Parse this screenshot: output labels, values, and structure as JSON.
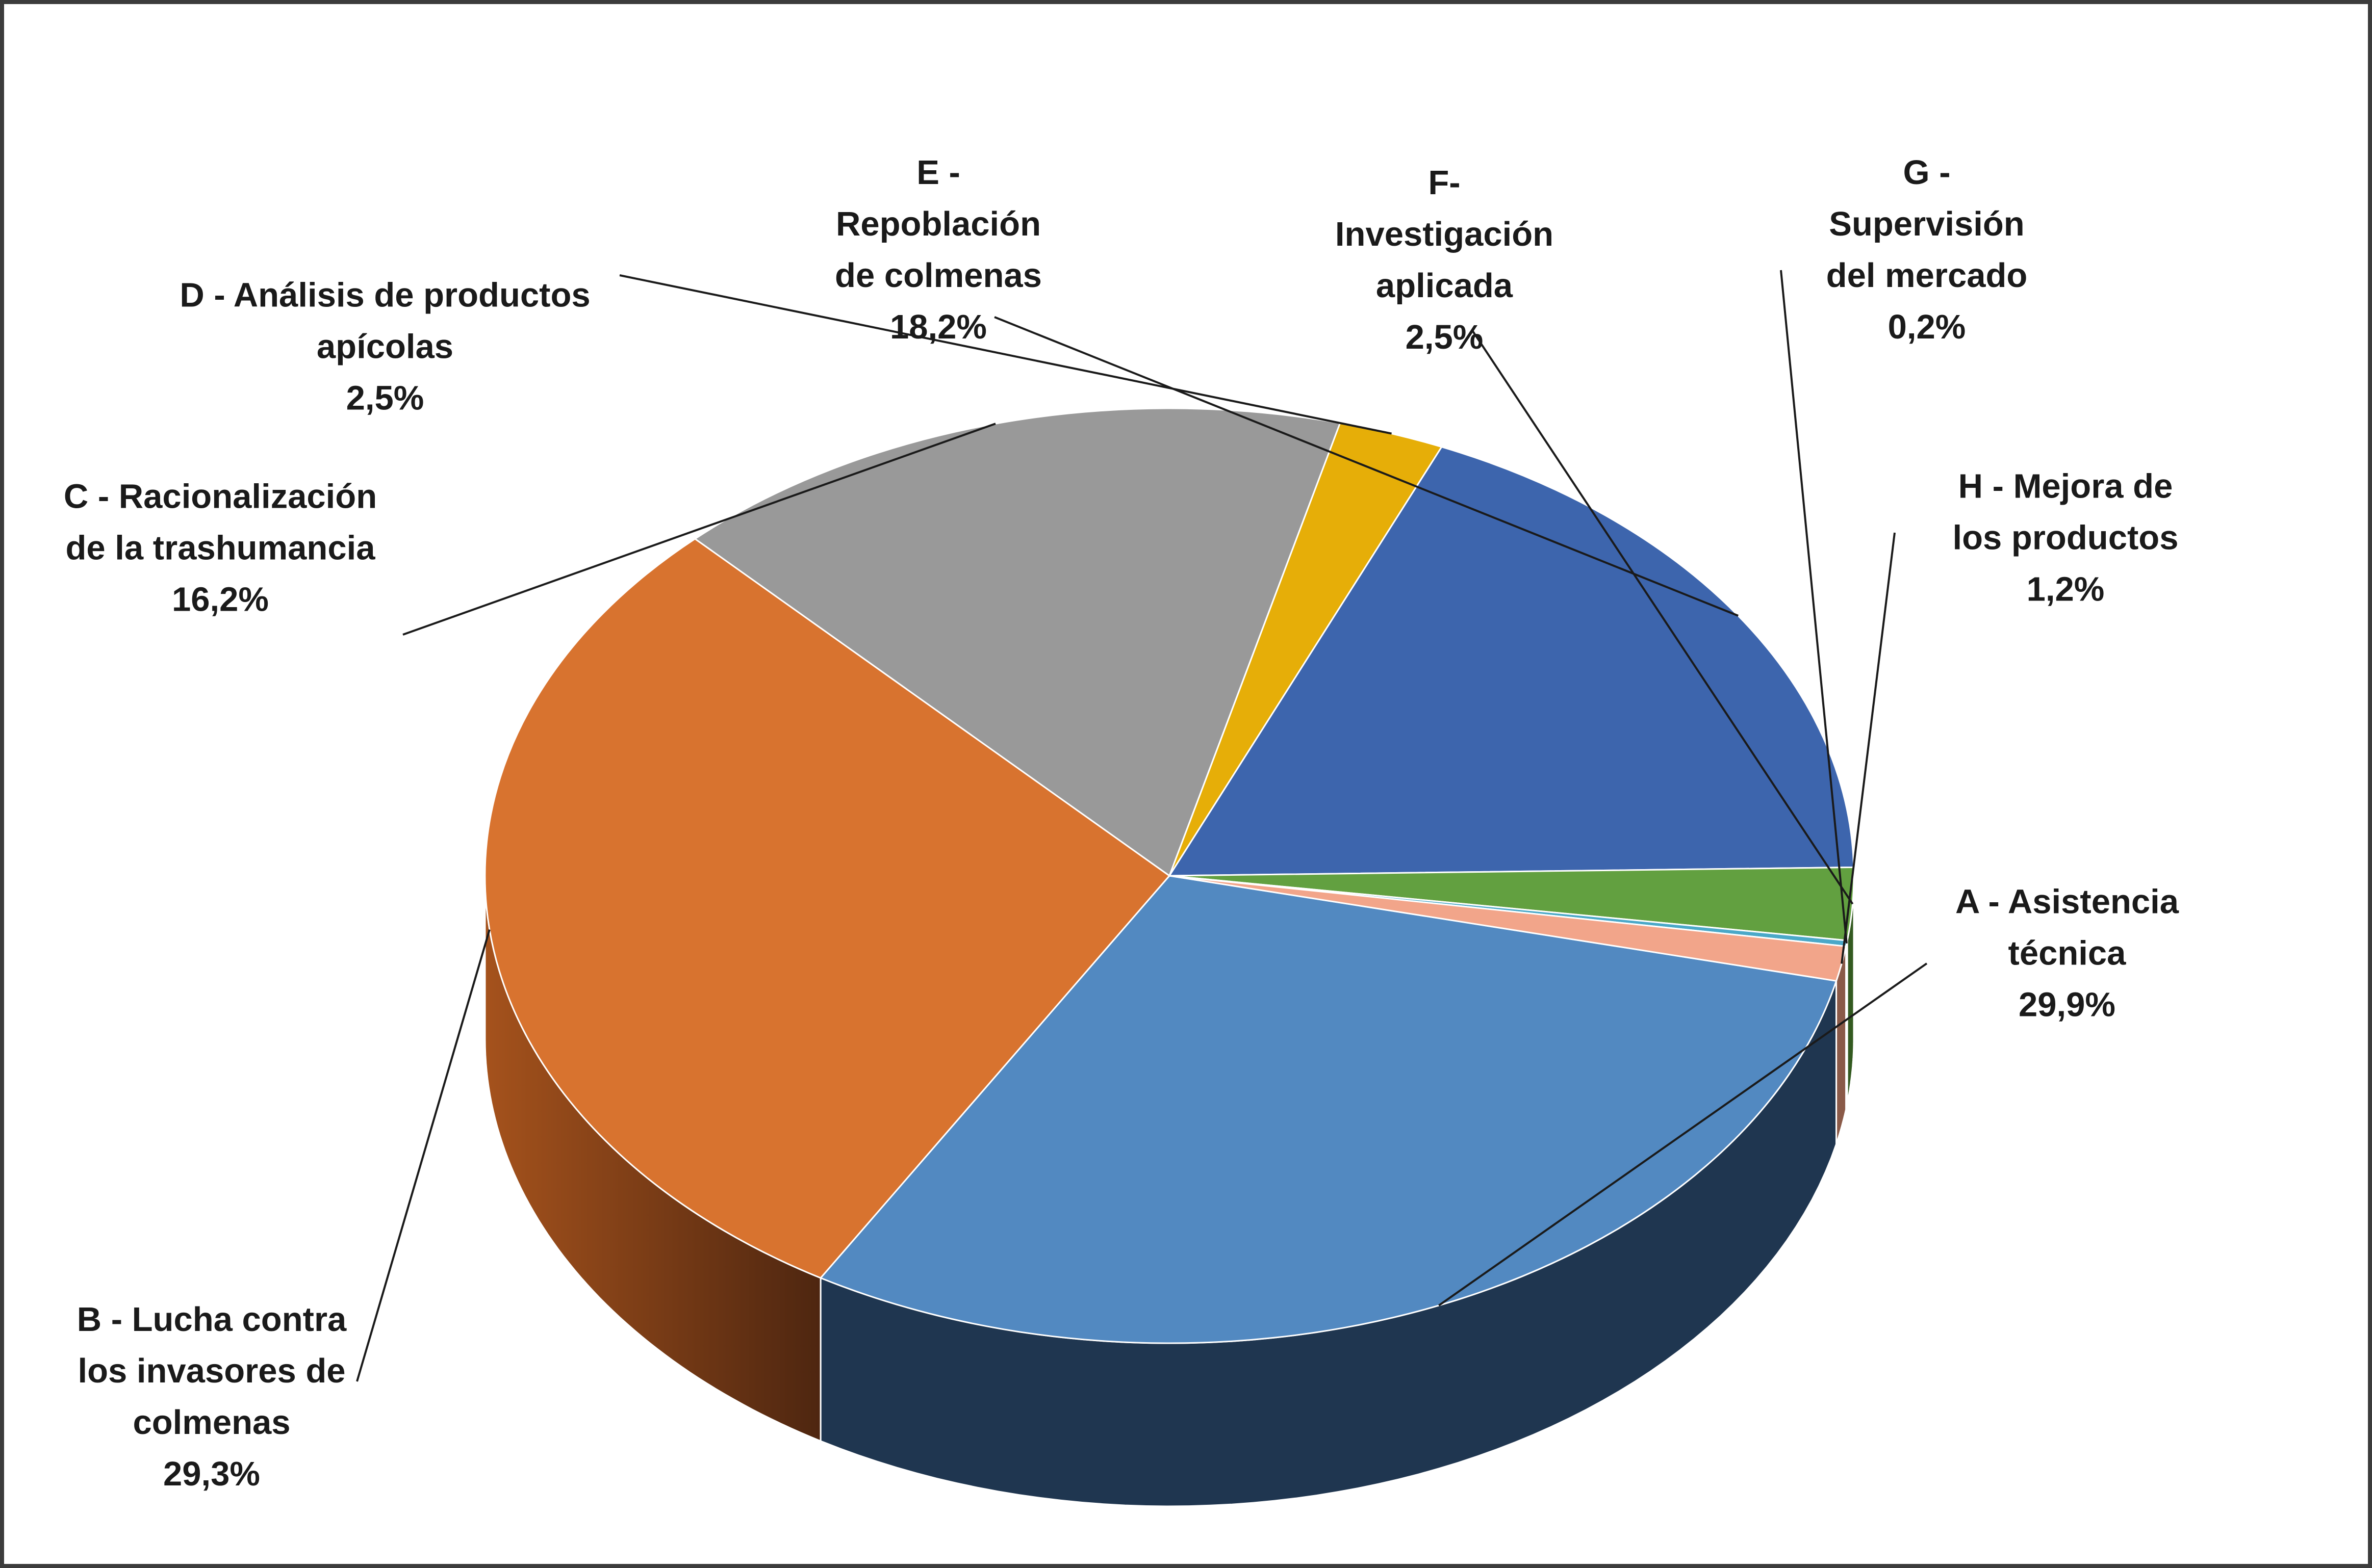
{
  "chart_data": {
    "type": "pie",
    "title": "",
    "slices": [
      {
        "key": "A",
        "lines": [
          "A - Asistencia",
          "técnica"
        ],
        "value_label": "29,9%",
        "value": 29.9,
        "color": "#5289c1",
        "side_color": "#1f3650"
      },
      {
        "key": "B",
        "lines": [
          "B - Lucha contra",
          "los invasores de",
          "colmenas"
        ],
        "value_label": "29,3%",
        "value": 29.3,
        "color": "#d8732f",
        "side_color": "#7a3d14"
      },
      {
        "key": "C",
        "lines": [
          "C - Racionalización",
          "de la trashumancia"
        ],
        "value_label": "16,2%",
        "value": 16.2,
        "color": "#999999",
        "side_color": "#555555"
      },
      {
        "key": "D",
        "lines": [
          "D - Análisis de productos",
          "apícolas"
        ],
        "value_label": "2,5%",
        "value": 2.5,
        "color": "#e6ae08",
        "side_color": "#7a5c04"
      },
      {
        "key": "E",
        "lines": [
          "E -",
          "Repoblación",
          "de colmenas"
        ],
        "value_label": "18,2%",
        "value": 18.2,
        "color": "#3d65ad",
        "side_color": "#1f3460"
      },
      {
        "key": "F",
        "lines": [
          "F-",
          "Investigación",
          "aplicada"
        ],
        "value_label": "2,5%",
        "value": 2.5,
        "color": "#62a040",
        "side_color": "#335a20"
      },
      {
        "key": "G",
        "lines": [
          "G -",
          "Supervisión",
          "del mercado"
        ],
        "value_label": "0,2%",
        "value": 0.2,
        "color": "#4aa8c8",
        "side_color": "#23566a"
      },
      {
        "key": "H",
        "lines": [
          "H - Mejora de",
          "los productos"
        ],
        "value_label": "1,2%",
        "value": 1.2,
        "color": "#f2a58a",
        "side_color": "#8a5a48"
      }
    ]
  }
}
